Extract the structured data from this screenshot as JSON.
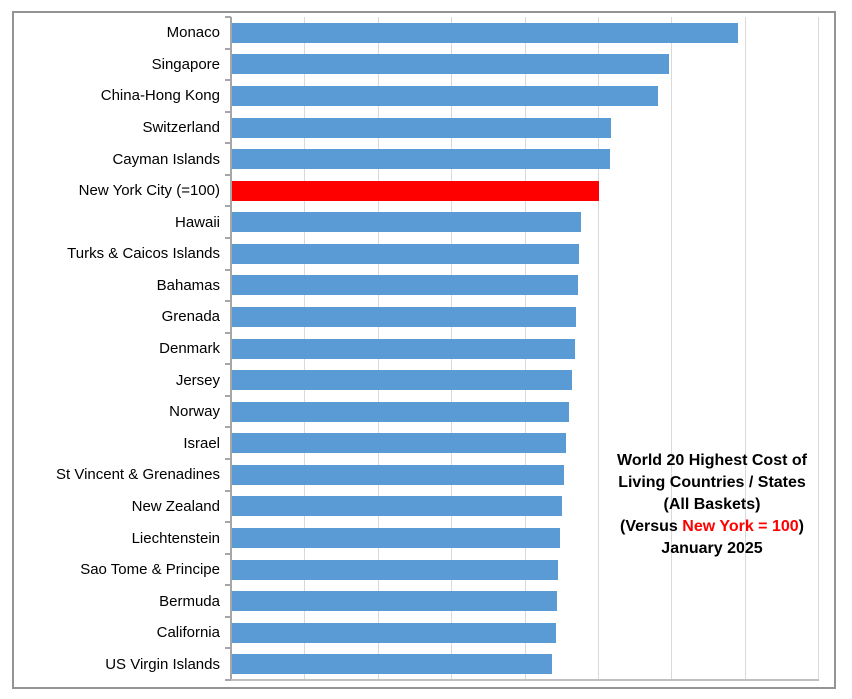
{
  "frame": {
    "border_color": "#949494",
    "background": "#ffffff"
  },
  "chart_data": {
    "type": "bar",
    "orientation": "horizontal",
    "title": "World 20 Highest Cost of Living Countries / States (All Baskets) (Versus New York = 100) January 2025",
    "title_lines": [
      {
        "text": "World 20 Highest Cost of"
      },
      {
        "text": "Living Countries / States"
      },
      {
        "text": "(All Baskets)"
      },
      {
        "pre": "(Versus ",
        "highlight": "New York = 100",
        "post": ")"
      },
      {
        "text": "January 2025"
      }
    ],
    "categories": [
      "Monaco",
      "Singapore",
      "China-Hong Kong",
      "Switzerland",
      "Cayman Islands",
      "New York City (=100)",
      "Hawaii",
      "Turks & Caicos Islands",
      "Bahamas",
      "Grenada",
      "Denmark",
      "Jersey",
      "Norway",
      "Israel",
      "St Vincent & Grenadines",
      "New Zealand",
      "Liechtenstein",
      "Sao Tome & Principe",
      "Bermuda",
      "California",
      "US Virgin Islands"
    ],
    "values": [
      138,
      119,
      116,
      103.4,
      103,
      100,
      95,
      94.5,
      94.2,
      93.7,
      93.4,
      92.6,
      91.8,
      91.1,
      90.5,
      90,
      89.4,
      88.9,
      88.5,
      88.3,
      87.3
    ],
    "highlight_index": 5,
    "xlim": [
      0,
      160
    ],
    "gridline_step": 20,
    "value_axis_labels": "none",
    "legend_position": "none",
    "colors": {
      "bar": "#5b9bd5",
      "highlight_bar": "#ff0000",
      "gridline": "#d9d9d9",
      "axis": "#a6a6a6",
      "title_text": "#000000",
      "title_highlight": "#ff0000"
    }
  }
}
